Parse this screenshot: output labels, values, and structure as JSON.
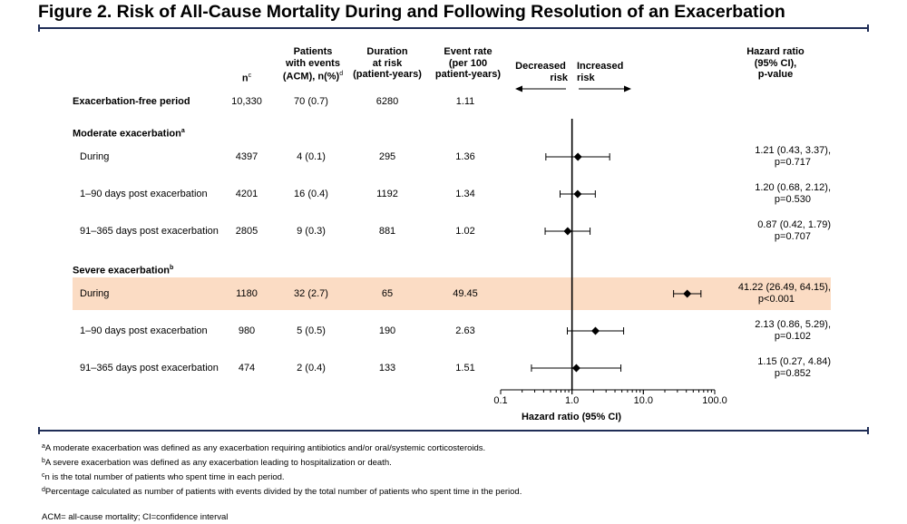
{
  "title": "Figure 2. Risk of All-Cause Mortality During and Following Resolution of an Exacerbation",
  "headers": {
    "n": "n",
    "n_sup": "c",
    "events": [
      "Patients",
      "with events",
      "(ACM), n(%)"
    ],
    "events_sup": "d",
    "duration": [
      "Duration",
      "at risk",
      "(patient-years)"
    ],
    "rate": [
      "Event rate",
      "(per 100",
      "patient-years)"
    ],
    "decreased": [
      "Decreased",
      "risk"
    ],
    "increased": [
      "Increased",
      "risk"
    ],
    "hr": [
      "Hazard ratio",
      "(95% CI),",
      "p-value"
    ]
  },
  "sections": {
    "moderate": "Moderate exacerbation",
    "moderate_sup": "a",
    "severe": "Severe exacerbation",
    "severe_sup": "b"
  },
  "axis": {
    "title": "Hazard ratio (95% CI)",
    "ticks": [
      {
        "value": 0.1,
        "label": "0.1"
      },
      {
        "value": 1,
        "label": "1.0"
      },
      {
        "value": 10,
        "label": "10.0"
      },
      {
        "value": 100,
        "label": "100.0"
      }
    ]
  },
  "chart_data": {
    "type": "forest",
    "x_scale": "log",
    "xlabel": "Hazard ratio (95% CI)",
    "xlim": [
      0.1,
      100
    ],
    "reference_line": 1,
    "rows": [
      {
        "label": "Exacerbation-free period",
        "n": "10,330",
        "events": "70 (0.7)",
        "duration": "6280",
        "rate": "1.11",
        "hr": null,
        "lo": null,
        "hi": null,
        "hr_text": [],
        "highlight": false,
        "bold": true
      },
      {
        "label": "During",
        "n": "4397",
        "events": "4 (0.1)",
        "duration": "295",
        "rate": "1.36",
        "hr": 1.21,
        "lo": 0.43,
        "hi": 3.37,
        "hr_text": [
          "1.21 (0.43, 3.37),",
          "p=0.717"
        ],
        "highlight": false,
        "bold": false
      },
      {
        "label": "1–90 days post exacerbation",
        "n": "4201",
        "events": "16 (0.4)",
        "duration": "1192",
        "rate": "1.34",
        "hr": 1.2,
        "lo": 0.68,
        "hi": 2.12,
        "hr_text": [
          "1.20 (0.68, 2.12),",
          "p=0.530"
        ],
        "highlight": false,
        "bold": false
      },
      {
        "label": "91–365 days post exacerbation",
        "n": "2805",
        "events": "9 (0.3)",
        "duration": "881",
        "rate": "1.02",
        "hr": 0.87,
        "lo": 0.42,
        "hi": 1.79,
        "hr_text": [
          "0.87 (0.42, 1.79)",
          "p=0.707"
        ],
        "highlight": false,
        "bold": false
      },
      {
        "label": "During",
        "n": "1180",
        "events": "32 (2.7)",
        "duration": "65",
        "rate": "49.45",
        "hr": 41.22,
        "lo": 26.49,
        "hi": 64.15,
        "hr_text": [
          "41.22 (26.49, 64.15),",
          "p<0.001"
        ],
        "highlight": true,
        "bold": false
      },
      {
        "label": "1–90 days post exacerbation",
        "n": "980",
        "events": "5 (0.5)",
        "duration": "190",
        "rate": "2.63",
        "hr": 2.13,
        "lo": 0.86,
        "hi": 5.29,
        "hr_text": [
          "2.13 (0.86, 5.29),",
          "p=0.102"
        ],
        "highlight": false,
        "bold": false
      },
      {
        "label": "91–365 days post exacerbation",
        "n": "474",
        "events": "2 (0.4)",
        "duration": "133",
        "rate": "1.51",
        "hr": 1.15,
        "lo": 0.27,
        "hi": 4.84,
        "hr_text": [
          "1.15 (0.27, 4.84)",
          "p=0.852"
        ],
        "highlight": false,
        "bold": false
      }
    ]
  },
  "footnotes": [
    {
      "sup": "a",
      "text": "A moderate exacerbation was defined as any exacerbation requiring antibiotics and/or oral/systemic corticosteroids."
    },
    {
      "sup": "b",
      "text": "A severe exacerbation was defined as any exacerbation leading to hospitalization or death."
    },
    {
      "sup": "c",
      "text": "n is the total number of patients who spent time in each period."
    },
    {
      "sup": "d",
      "text": "Percentage calculated as number of patients with events divided by the total number of patients who spent time in the period."
    }
  ],
  "abbreviations": "ACM= all-cause mortality; CI=confidence interval",
  "colors": {
    "highlight": "#fbdcc4",
    "rule": "#1f2d56",
    "ink": "#000000"
  }
}
